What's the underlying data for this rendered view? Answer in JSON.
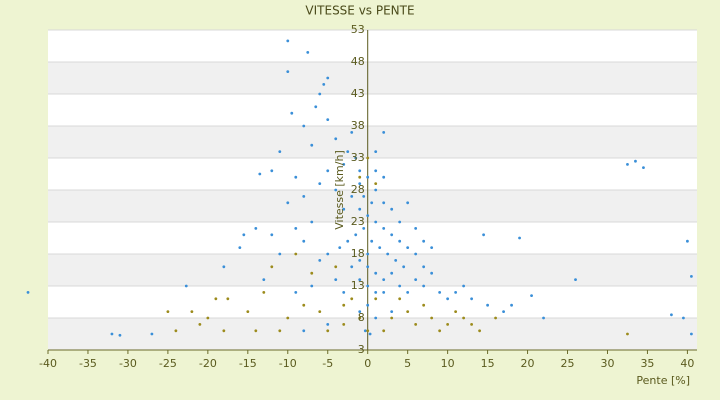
{
  "chart_data": {
    "type": "scatter",
    "title": "VITESSE vs PENTE",
    "x_label": "Pente [%]",
    "y_label": "Vitesse [km/h]",
    "xlim": [
      -40,
      41.2
    ],
    "xticks": [
      -40,
      -35,
      -30,
      -25,
      -20,
      -15,
      -10,
      -5,
      0,
      5,
      10,
      15,
      20,
      25,
      30,
      35,
      40
    ],
    "ylim": [
      3,
      53
    ],
    "yticks": [
      3,
      8,
      13,
      18,
      23,
      28,
      33,
      38,
      43,
      48,
      53
    ],
    "grid": true,
    "series": [
      {
        "color": "#3a8fd8",
        "x": [
          -10,
          -7.5,
          -10,
          -5.5,
          -6,
          -5,
          -9.5,
          -8,
          -6.5,
          -4,
          -2.5,
          -7,
          -11,
          -12,
          -13.5,
          -9,
          -8,
          -10,
          -6,
          -5,
          -3,
          -1.5,
          0,
          1,
          2,
          -4,
          -2,
          -1,
          1,
          2,
          3,
          -3,
          -1,
          0,
          1,
          2,
          3,
          4,
          5,
          6,
          7,
          8,
          -0.5,
          -1.5,
          -2.5,
          -3.5,
          -5,
          -6,
          -8,
          -11,
          -12,
          -14,
          -15.5,
          -16,
          0.5,
          1.5,
          2.5,
          3.5,
          4.5,
          0,
          -1,
          -2,
          0,
          1,
          2,
          3,
          -1,
          0,
          1,
          2,
          4,
          5,
          6,
          7,
          9,
          10,
          11,
          12,
          13,
          14.5,
          19,
          20.5,
          18,
          15,
          -3,
          -4,
          -7,
          -9,
          -13,
          -22.7,
          -18,
          0,
          1,
          -1,
          3,
          -0.3,
          0.3,
          -42.5,
          -32,
          -31,
          -27,
          26,
          32.5,
          33.5,
          34.5,
          40,
          40.5,
          38,
          39.5,
          40.5,
          22,
          17,
          -5,
          -8,
          5,
          7,
          8,
          -2,
          -5,
          1,
          -1,
          2,
          0.5,
          -0.5,
          4,
          6,
          -7,
          -9
        ],
        "values": [
          51.3,
          49.5,
          46.5,
          44.5,
          43,
          45.5,
          40,
          38,
          41,
          36,
          34,
          35,
          34,
          31,
          30.5,
          30,
          27,
          26,
          29,
          31,
          32,
          33,
          30,
          34,
          37,
          28,
          27,
          29,
          28,
          26,
          25,
          25,
          25,
          24,
          23,
          22,
          21,
          20,
          19,
          18,
          16,
          15,
          22,
          21,
          20,
          19,
          18,
          17,
          20,
          18,
          21,
          22,
          21,
          19,
          20,
          19,
          18,
          17,
          16,
          18,
          17,
          16,
          16,
          15,
          14,
          15,
          14,
          13,
          12,
          12,
          13,
          12,
          14,
          13,
          12,
          11,
          12,
          13,
          11,
          21,
          20.5,
          11.5,
          10,
          10,
          12,
          14,
          13,
          12,
          14,
          13,
          16,
          10,
          8,
          9,
          9,
          6,
          5.5,
          12,
          5.5,
          5.3,
          5.5,
          14,
          32,
          32.5,
          31.5,
          20,
          14.5,
          8.5,
          8,
          5.5,
          8,
          9,
          7,
          6,
          26,
          20,
          19,
          37,
          39,
          31,
          31,
          30,
          26,
          27,
          23,
          22,
          23,
          22
        ]
      },
      {
        "color": "#9c8b1c",
        "x": [
          -25,
          -22,
          -21,
          -17.5,
          -20,
          -13,
          -10,
          -11,
          -8,
          -5,
          -6,
          -3,
          -1,
          0,
          2,
          3,
          5,
          6,
          7,
          8,
          9,
          10,
          11,
          12,
          13,
          14,
          16,
          32.5,
          -12,
          -9,
          -7,
          -4,
          -2,
          1,
          4,
          -15,
          -14,
          -3,
          0,
          -1,
          1,
          -18,
          -24,
          -19
        ],
        "values": [
          9,
          9,
          7,
          11,
          8,
          12,
          8,
          6,
          10,
          6,
          9,
          10,
          8,
          6,
          6,
          8,
          9,
          7,
          10,
          8,
          6,
          7,
          9,
          8,
          7,
          6,
          8,
          5.5,
          16,
          18,
          15,
          16,
          11,
          11,
          11,
          9,
          6,
          7,
          33,
          30,
          29,
          6,
          6,
          11
        ]
      }
    ]
  }
}
